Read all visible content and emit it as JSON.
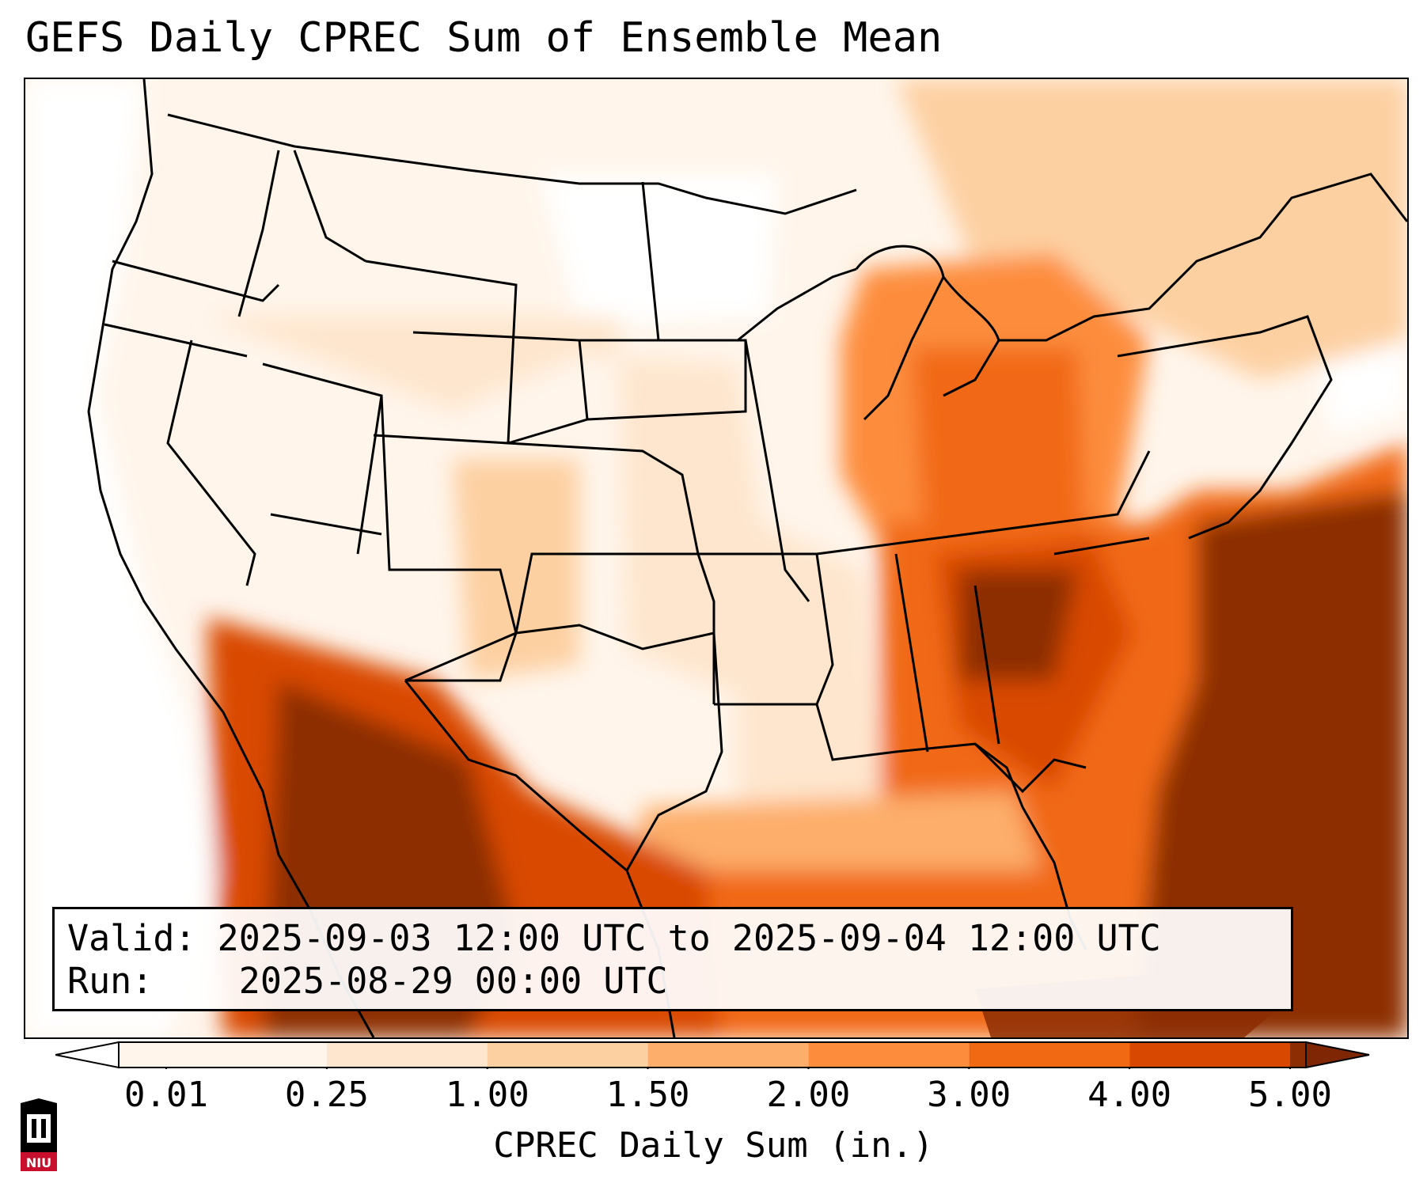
{
  "title": "GEFS Daily CPREC Sum of Ensemble Mean",
  "info": {
    "valid_label": "Valid:",
    "valid_value": "2025-09-03 12:00 UTC to 2025-09-04 12:00 UTC",
    "run_label": "Run:",
    "run_value": "2025-08-29 00:00 UTC"
  },
  "colorbar": {
    "label": "CPREC Daily Sum (in.)",
    "ticks": [
      "0.01",
      "0.25",
      "1.00",
      "1.50",
      "2.00",
      "3.00",
      "4.00",
      "5.00"
    ],
    "colors": [
      "#fff5eb",
      "#fee6ce",
      "#fdd0a2",
      "#fdae6b",
      "#fd8d3c",
      "#f16913",
      "#d94801",
      "#8c2d04"
    ],
    "under_color": "#ffffff",
    "over_color": "#7f2704"
  },
  "logo": {
    "text": "NIU",
    "color": "#c8102e"
  }
}
